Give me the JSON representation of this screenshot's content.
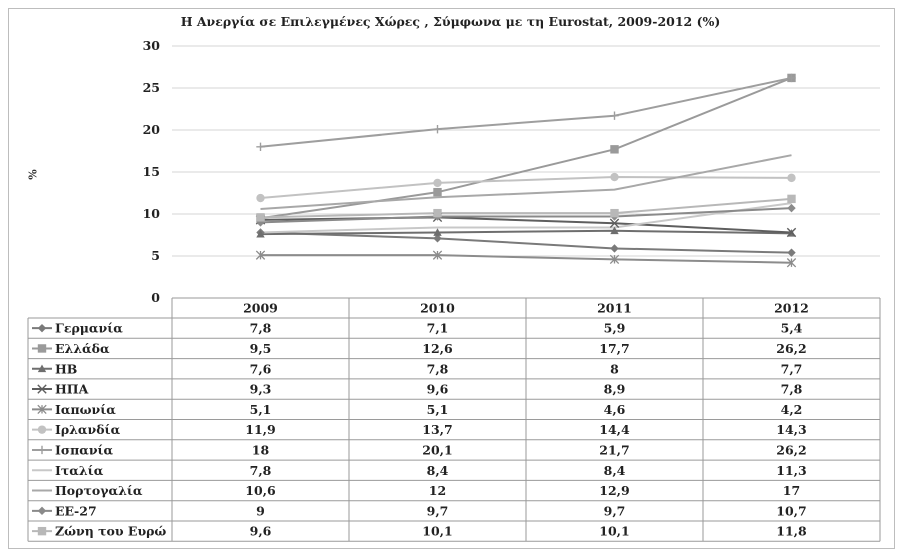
{
  "chart_data": {
    "type": "line",
    "title": "Η Ανεργία σε Επιλεγμένες Χώρες , Σύμφωνα με τη Eurostat,  2009-2012 (%)",
    "ylabel": "%",
    "xlabel": "",
    "categories": [
      "2009",
      "2010",
      "2011",
      "2012"
    ],
    "ylim": [
      0,
      30
    ],
    "yticks": [
      0,
      5,
      10,
      15,
      20,
      25,
      30
    ],
    "grid": true,
    "legend": "data table below plot",
    "series": [
      {
        "name": "Γερμανία",
        "marker": "diamond",
        "color": "#7a7a7a",
        "values": [
          7.8,
          7.1,
          5.9,
          5.4
        ],
        "labels": [
          "7,8",
          "7,1",
          "5,9",
          "5,4"
        ]
      },
      {
        "name": "Ελλάδα",
        "marker": "square",
        "color": "#9a9a9a",
        "values": [
          9.5,
          12.6,
          17.7,
          26.2
        ],
        "labels": [
          "9,5",
          "12,6",
          "17,7",
          "26,2"
        ]
      },
      {
        "name": "ΗΒ",
        "marker": "triangle",
        "color": "#6e6e6e",
        "values": [
          7.6,
          7.8,
          8,
          7.7
        ],
        "labels": [
          "7,6",
          "7,8",
          "8",
          "7,7"
        ]
      },
      {
        "name": "ΗΠΑ",
        "marker": "x",
        "color": "#5e5e5e",
        "values": [
          9.3,
          9.6,
          8.9,
          7.8
        ],
        "labels": [
          "9,3",
          "9,6",
          "8,9",
          "7,8"
        ]
      },
      {
        "name": "Ιαπωνία",
        "marker": "star",
        "color": "#8c8c8c",
        "values": [
          5.1,
          5.1,
          4.6,
          4.2
        ],
        "labels": [
          "5,1",
          "5,1",
          "4,6",
          "4,2"
        ]
      },
      {
        "name": "Ιρλανδία",
        "marker": "circle",
        "color": "#c2c2c2",
        "values": [
          11.9,
          13.7,
          14.4,
          14.3
        ],
        "labels": [
          "11,9",
          "13,7",
          "14,4",
          "14,3"
        ]
      },
      {
        "name": "Ισπανία",
        "marker": "plus",
        "color": "#9e9e9e",
        "values": [
          18,
          20.1,
          21.7,
          26.2
        ],
        "labels": [
          "18",
          "20,1",
          "21,7",
          "26,2"
        ]
      },
      {
        "name": "Ιταλία",
        "marker": "none",
        "color": "#c8c8c8",
        "values": [
          7.8,
          8.4,
          8.4,
          11.3
        ],
        "labels": [
          "7,8",
          "8,4",
          "8,4",
          "11,3"
        ]
      },
      {
        "name": "Πορτογαλία",
        "marker": "none",
        "color": "#a8a8a8",
        "values": [
          10.6,
          12,
          12.9,
          17
        ],
        "labels": [
          "10,6",
          "12",
          "12,9",
          "17"
        ]
      },
      {
        "name": "ΕΕ-27",
        "marker": "diamond",
        "color": "#8a8a8a",
        "values": [
          9,
          9.7,
          9.7,
          10.7
        ],
        "labels": [
          "9",
          "9,7",
          "9,7",
          "10,7"
        ]
      },
      {
        "name": "Ζώνη του Ευρώ",
        "marker": "square",
        "color": "#b8b8b8",
        "values": [
          9.6,
          10.1,
          10.1,
          11.8
        ],
        "labels": [
          "9,6",
          "10,1",
          "10,1",
          "11,8"
        ]
      }
    ]
  }
}
